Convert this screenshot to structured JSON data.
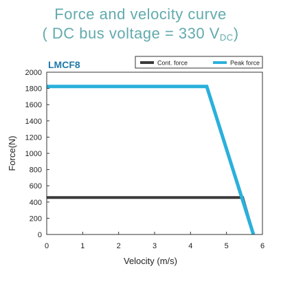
{
  "header": {
    "line1": "Force and velocity curve",
    "line2_prefix": "( DC bus voltage = 330 V",
    "line2_subscript": "DC",
    "line2_suffix": ")"
  },
  "chart_data": {
    "type": "line",
    "title": "LMCF8",
    "xlabel": "Velocity (m/s)",
    "ylabel": "Force(N)",
    "xlim": [
      0,
      6
    ],
    "ylim": [
      0,
      2000
    ],
    "xticks": [
      "0",
      "1",
      "2",
      "3",
      "4",
      "5",
      "6"
    ],
    "yticks": [
      "0",
      "200",
      "400",
      "600",
      "800",
      "1000",
      "1200",
      "1400",
      "1600",
      "1800",
      "2000"
    ],
    "grid": "none",
    "legend_position": "top-right",
    "title_color": "#1f78a8",
    "series": [
      {
        "name": "Cont. force",
        "color": "#3a3a3a",
        "points": [
          [
            0,
            455
          ],
          [
            5.45,
            455
          ],
          [
            5.75,
            0
          ]
        ]
      },
      {
        "name": "Peak force",
        "color": "#2ab0dc",
        "points": [
          [
            0,
            1825
          ],
          [
            4.45,
            1825
          ],
          [
            5.75,
            0
          ]
        ]
      }
    ]
  }
}
